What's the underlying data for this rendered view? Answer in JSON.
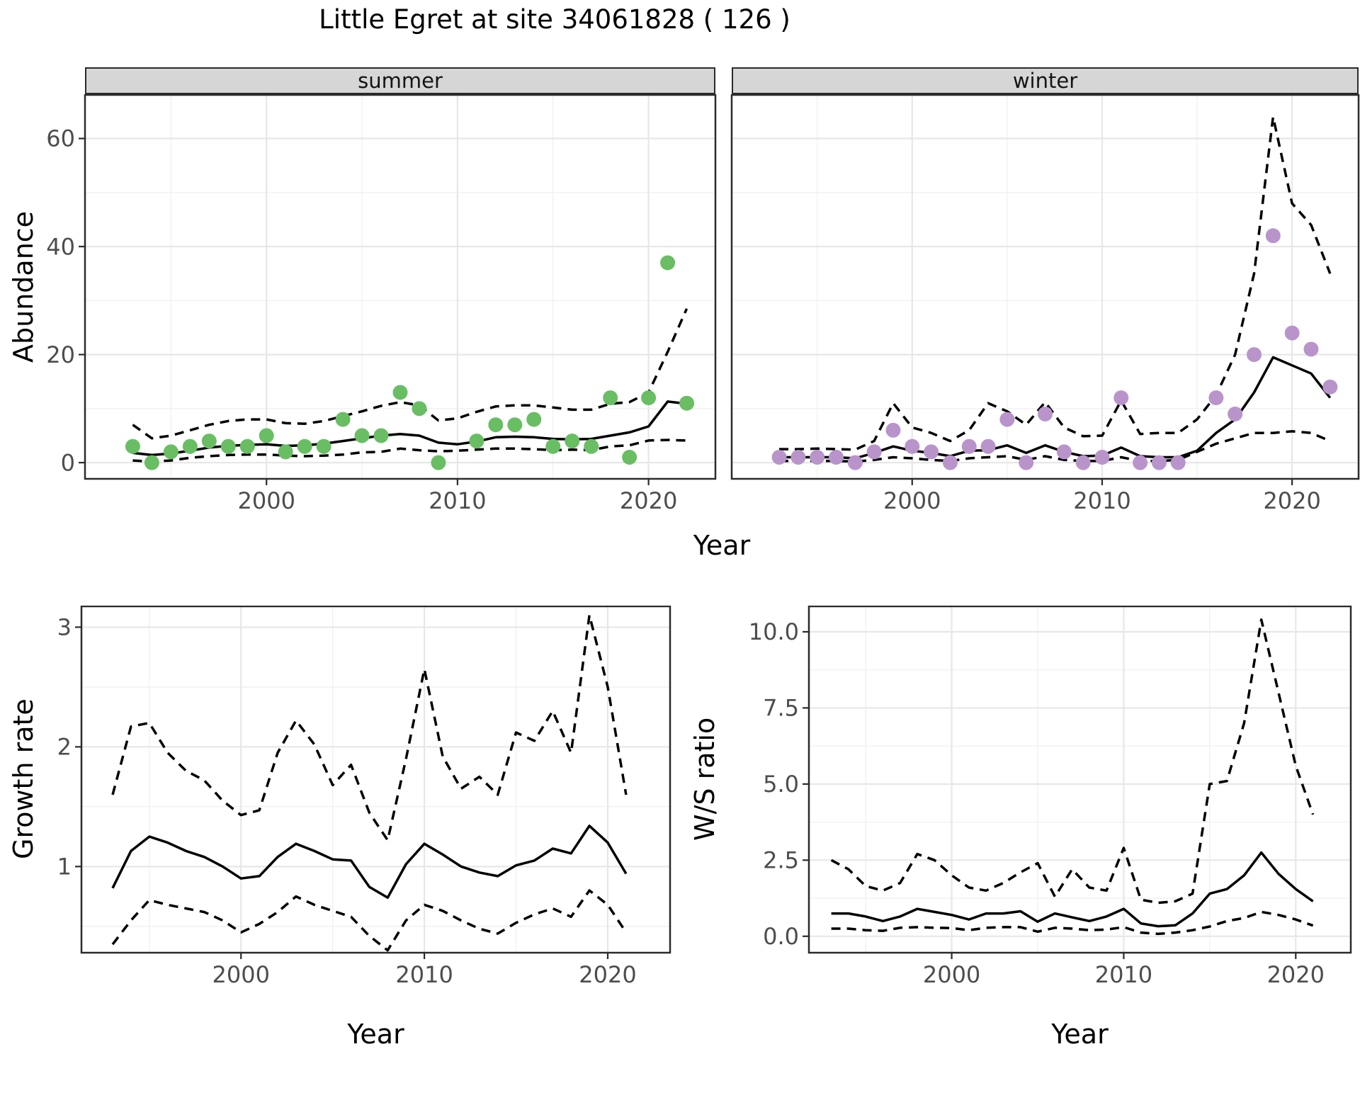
{
  "title": "Little Egret at site 34061828 ( 126 )",
  "colors": {
    "summer_point": "#69be64",
    "winter_point": "#b994cb",
    "fit_line": "#000000",
    "ci_line": "#000000",
    "strip_bg": "#d6d6d6",
    "grid_major": "#e7e7e7",
    "grid_minor": "#f1f1f1",
    "axis_text": "#4d4d4d",
    "panel_border": "#2b2b2b"
  },
  "chart_data": {
    "abundance": {
      "type": "scatter",
      "ylabel": "Abundance",
      "xlabel": "Year",
      "ylim": [
        -3,
        68.2
      ],
      "ytick_values": [
        0,
        20,
        40,
        60
      ],
      "ytick_labels": [
        "0",
        "20",
        "40",
        "60"
      ],
      "yminor": [
        10,
        30,
        50
      ],
      "xtick_values": [
        2000,
        2010,
        2020
      ],
      "xtick_labels": [
        "2000",
        "2010",
        "2020"
      ],
      "xminor": [
        1995,
        2005,
        2015
      ],
      "grid": true,
      "legend": "none",
      "facets": [
        {
          "label": "summer",
          "point_color": "#69be64",
          "points_x": [
            1993,
            1994,
            1995,
            1996,
            1997,
            1998,
            1999,
            2000,
            2001,
            2002,
            2003,
            2004,
            2005,
            2006,
            2007,
            2008,
            2009,
            2011,
            2012,
            2013,
            2014,
            2015,
            2016,
            2017,
            2018,
            2019,
            2020,
            2021,
            2022
          ],
          "points_y": [
            3,
            0,
            2,
            3,
            4,
            3,
            3,
            5,
            2,
            3,
            3,
            8,
            5,
            5,
            13,
            10,
            0,
            4,
            7,
            7,
            8,
            3,
            4,
            3,
            12,
            1,
            12,
            37,
            11
          ],
          "years": [
            1993,
            1994,
            1995,
            1996,
            1997,
            1998,
            1999,
            2000,
            2001,
            2002,
            2003,
            2004,
            2005,
            2006,
            2007,
            2008,
            2009,
            2010,
            2011,
            2012,
            2013,
            2014,
            2015,
            2016,
            2017,
            2018,
            2019,
            2020,
            2021,
            2022
          ],
          "fit": [
            1.8,
            1.4,
            1.7,
            2.2,
            2.8,
            3.1,
            3.3,
            3.4,
            3.1,
            3.2,
            3.5,
            4.0,
            4.5,
            5.0,
            5.3,
            5.0,
            3.7,
            3.4,
            3.9,
            4.7,
            4.8,
            4.7,
            4.4,
            4.3,
            4.4,
            5.0,
            5.6,
            6.7,
            11.3,
            10.9
          ],
          "upper_ci": [
            7.0,
            4.5,
            5.0,
            6.0,
            7.0,
            7.7,
            8.0,
            8.0,
            7.3,
            7.2,
            7.7,
            8.6,
            9.5,
            10.5,
            11.2,
            10.6,
            7.8,
            8.2,
            9.4,
            10.4,
            10.6,
            10.6,
            10.2,
            9.8,
            9.8,
            10.9,
            11.2,
            13.0,
            20.5,
            28.5
          ],
          "lower_ci": [
            0.4,
            0.2,
            0.4,
            0.9,
            1.2,
            1.4,
            1.5,
            1.5,
            1.3,
            1.2,
            1.3,
            1.5,
            1.9,
            2.0,
            2.6,
            2.3,
            2.1,
            2.2,
            2.4,
            2.6,
            2.6,
            2.5,
            2.3,
            2.4,
            2.3,
            3.0,
            3.2,
            4.1,
            4.2,
            4.1
          ]
        },
        {
          "label": "winter",
          "point_color": "#b994cb",
          "points_x": [
            1993,
            1994,
            1995,
            1996,
            1997,
            1998,
            1999,
            2000,
            2001,
            2002,
            2003,
            2004,
            2005,
            2006,
            2007,
            2008,
            2009,
            2010,
            2011,
            2012,
            2013,
            2014,
            2016,
            2017,
            2018,
            2019,
            2020,
            2021,
            2022
          ],
          "points_y": [
            1,
            1,
            1,
            1,
            0,
            2,
            6,
            3,
            2,
            0,
            3,
            3,
            8,
            0,
            9,
            2,
            0,
            1,
            12,
            0,
            0,
            0,
            12,
            9,
            20,
            42,
            24,
            21,
            14
          ],
          "years": [
            1993,
            1994,
            1995,
            1996,
            1997,
            1998,
            1999,
            2000,
            2001,
            2002,
            2003,
            2004,
            2005,
            2006,
            2007,
            2008,
            2009,
            2010,
            2011,
            2012,
            2013,
            2014,
            2015,
            2016,
            2017,
            2018,
            2019,
            2020,
            2021,
            2022
          ],
          "fit": [
            1.0,
            1.0,
            1.0,
            1.0,
            0.8,
            1.8,
            3.0,
            2.2,
            1.8,
            1.2,
            2.2,
            2.3,
            3.2,
            1.8,
            3.2,
            2.0,
            1.2,
            1.3,
            2.8,
            1.2,
            1.0,
            1.0,
            2.2,
            5.5,
            8.0,
            13.0,
            19.5,
            18.0,
            16.5,
            12.0
          ],
          "upper_ci": [
            2.5,
            2.5,
            2.6,
            2.5,
            2.4,
            4.0,
            11.0,
            6.5,
            5.5,
            4.0,
            6.0,
            11.0,
            9.5,
            7.0,
            11.2,
            6.5,
            4.9,
            5.0,
            11.5,
            5.3,
            5.5,
            5.5,
            8.0,
            12.5,
            20.0,
            35.0,
            64.0,
            48.0,
            44.0,
            35.0
          ],
          "lower_ci": [
            0.3,
            0.3,
            0.3,
            0.3,
            0.2,
            0.5,
            1.0,
            0.8,
            0.5,
            0.3,
            0.8,
            1.0,
            1.2,
            0.5,
            1.2,
            0.5,
            0.3,
            0.3,
            1.0,
            0.3,
            0.3,
            0.5,
            2.0,
            3.5,
            4.5,
            5.5,
            5.5,
            5.8,
            5.5,
            4.0
          ]
        }
      ]
    },
    "growth_rate": {
      "type": "line",
      "ylabel": "Growth rate",
      "xlabel": "Year",
      "ylim": [
        0.28,
        3.18
      ],
      "ytick_values": [
        1,
        2,
        3
      ],
      "ytick_labels": [
        "1",
        "2",
        "3"
      ],
      "yminor": [
        0.5,
        1.5,
        2.5
      ],
      "xtick_values": [
        2000,
        2010,
        2020
      ],
      "xtick_labels": [
        "2000",
        "2010",
        "2020"
      ],
      "xminor": [
        1995,
        2005,
        2015
      ],
      "grid": true,
      "years": [
        1993,
        1994,
        1995,
        1996,
        1997,
        1998,
        1999,
        2000,
        2001,
        2002,
        2003,
        2004,
        2005,
        2006,
        2007,
        2008,
        2009,
        2010,
        2011,
        2012,
        2013,
        2014,
        2015,
        2016,
        2017,
        2018,
        2019,
        2020,
        2021
      ],
      "fit": [
        0.82,
        1.13,
        1.25,
        1.2,
        1.13,
        1.08,
        1.0,
        0.9,
        0.92,
        1.08,
        1.19,
        1.13,
        1.06,
        1.05,
        0.83,
        0.74,
        1.02,
        1.19,
        1.1,
        1.0,
        0.95,
        0.92,
        1.01,
        1.05,
        1.15,
        1.11,
        1.34,
        1.2,
        0.94
      ],
      "upper_ci": [
        1.6,
        2.17,
        2.2,
        1.95,
        1.8,
        1.72,
        1.55,
        1.43,
        1.47,
        1.95,
        2.22,
        2.02,
        1.68,
        1.85,
        1.45,
        1.22,
        1.9,
        2.65,
        1.92,
        1.65,
        1.75,
        1.6,
        2.12,
        2.05,
        2.3,
        1.95,
        3.1,
        2.5,
        1.6
      ],
      "lower_ci": [
        0.35,
        0.55,
        0.72,
        0.68,
        0.65,
        0.62,
        0.55,
        0.45,
        0.52,
        0.62,
        0.75,
        0.68,
        0.63,
        0.58,
        0.42,
        0.3,
        0.55,
        0.68,
        0.63,
        0.55,
        0.48,
        0.44,
        0.53,
        0.6,
        0.65,
        0.58,
        0.8,
        0.68,
        0.45
      ]
    },
    "ws_ratio": {
      "type": "line",
      "ylabel": "W/S ratio",
      "xlabel": "Year",
      "ylim": [
        -0.54,
        10.86
      ],
      "ytick_values": [
        0,
        2.5,
        5,
        7.5,
        10
      ],
      "ytick_labels": [
        "0.0",
        "2.5",
        "5.0",
        "7.5",
        "10.0"
      ],
      "yminor": [
        1.25,
        3.75,
        6.25,
        8.75
      ],
      "xtick_values": [
        2000,
        2010,
        2020
      ],
      "xtick_labels": [
        "2000",
        "2010",
        "2020"
      ],
      "xminor": [
        1995,
        2005,
        2015
      ],
      "grid": true,
      "years": [
        1993,
        1994,
        1995,
        1996,
        1997,
        1998,
        1999,
        2000,
        2001,
        2002,
        2003,
        2004,
        2005,
        2006,
        2007,
        2008,
        2009,
        2010,
        2011,
        2012,
        2013,
        2014,
        2015,
        2016,
        2017,
        2018,
        2019,
        2020,
        2021
      ],
      "fit": [
        0.75,
        0.75,
        0.65,
        0.5,
        0.65,
        0.9,
        0.8,
        0.7,
        0.55,
        0.75,
        0.75,
        0.82,
        0.48,
        0.75,
        0.62,
        0.5,
        0.65,
        0.9,
        0.42,
        0.33,
        0.36,
        0.75,
        1.4,
        1.55,
        2.0,
        2.75,
        2.05,
        1.55,
        1.15
      ],
      "upper_ci": [
        2.5,
        2.2,
        1.65,
        1.5,
        1.75,
        2.7,
        2.5,
        2.0,
        1.6,
        1.5,
        1.75,
        2.1,
        2.4,
        1.3,
        2.2,
        1.6,
        1.5,
        2.9,
        1.2,
        1.1,
        1.15,
        1.4,
        5.0,
        5.1,
        7.0,
        10.4,
        8.0,
        5.6,
        4.0
      ],
      "lower_ci": [
        0.25,
        0.25,
        0.2,
        0.18,
        0.28,
        0.3,
        0.28,
        0.27,
        0.2,
        0.28,
        0.3,
        0.3,
        0.15,
        0.28,
        0.25,
        0.2,
        0.22,
        0.3,
        0.12,
        0.08,
        0.12,
        0.2,
        0.32,
        0.5,
        0.6,
        0.8,
        0.7,
        0.55,
        0.35
      ]
    }
  }
}
